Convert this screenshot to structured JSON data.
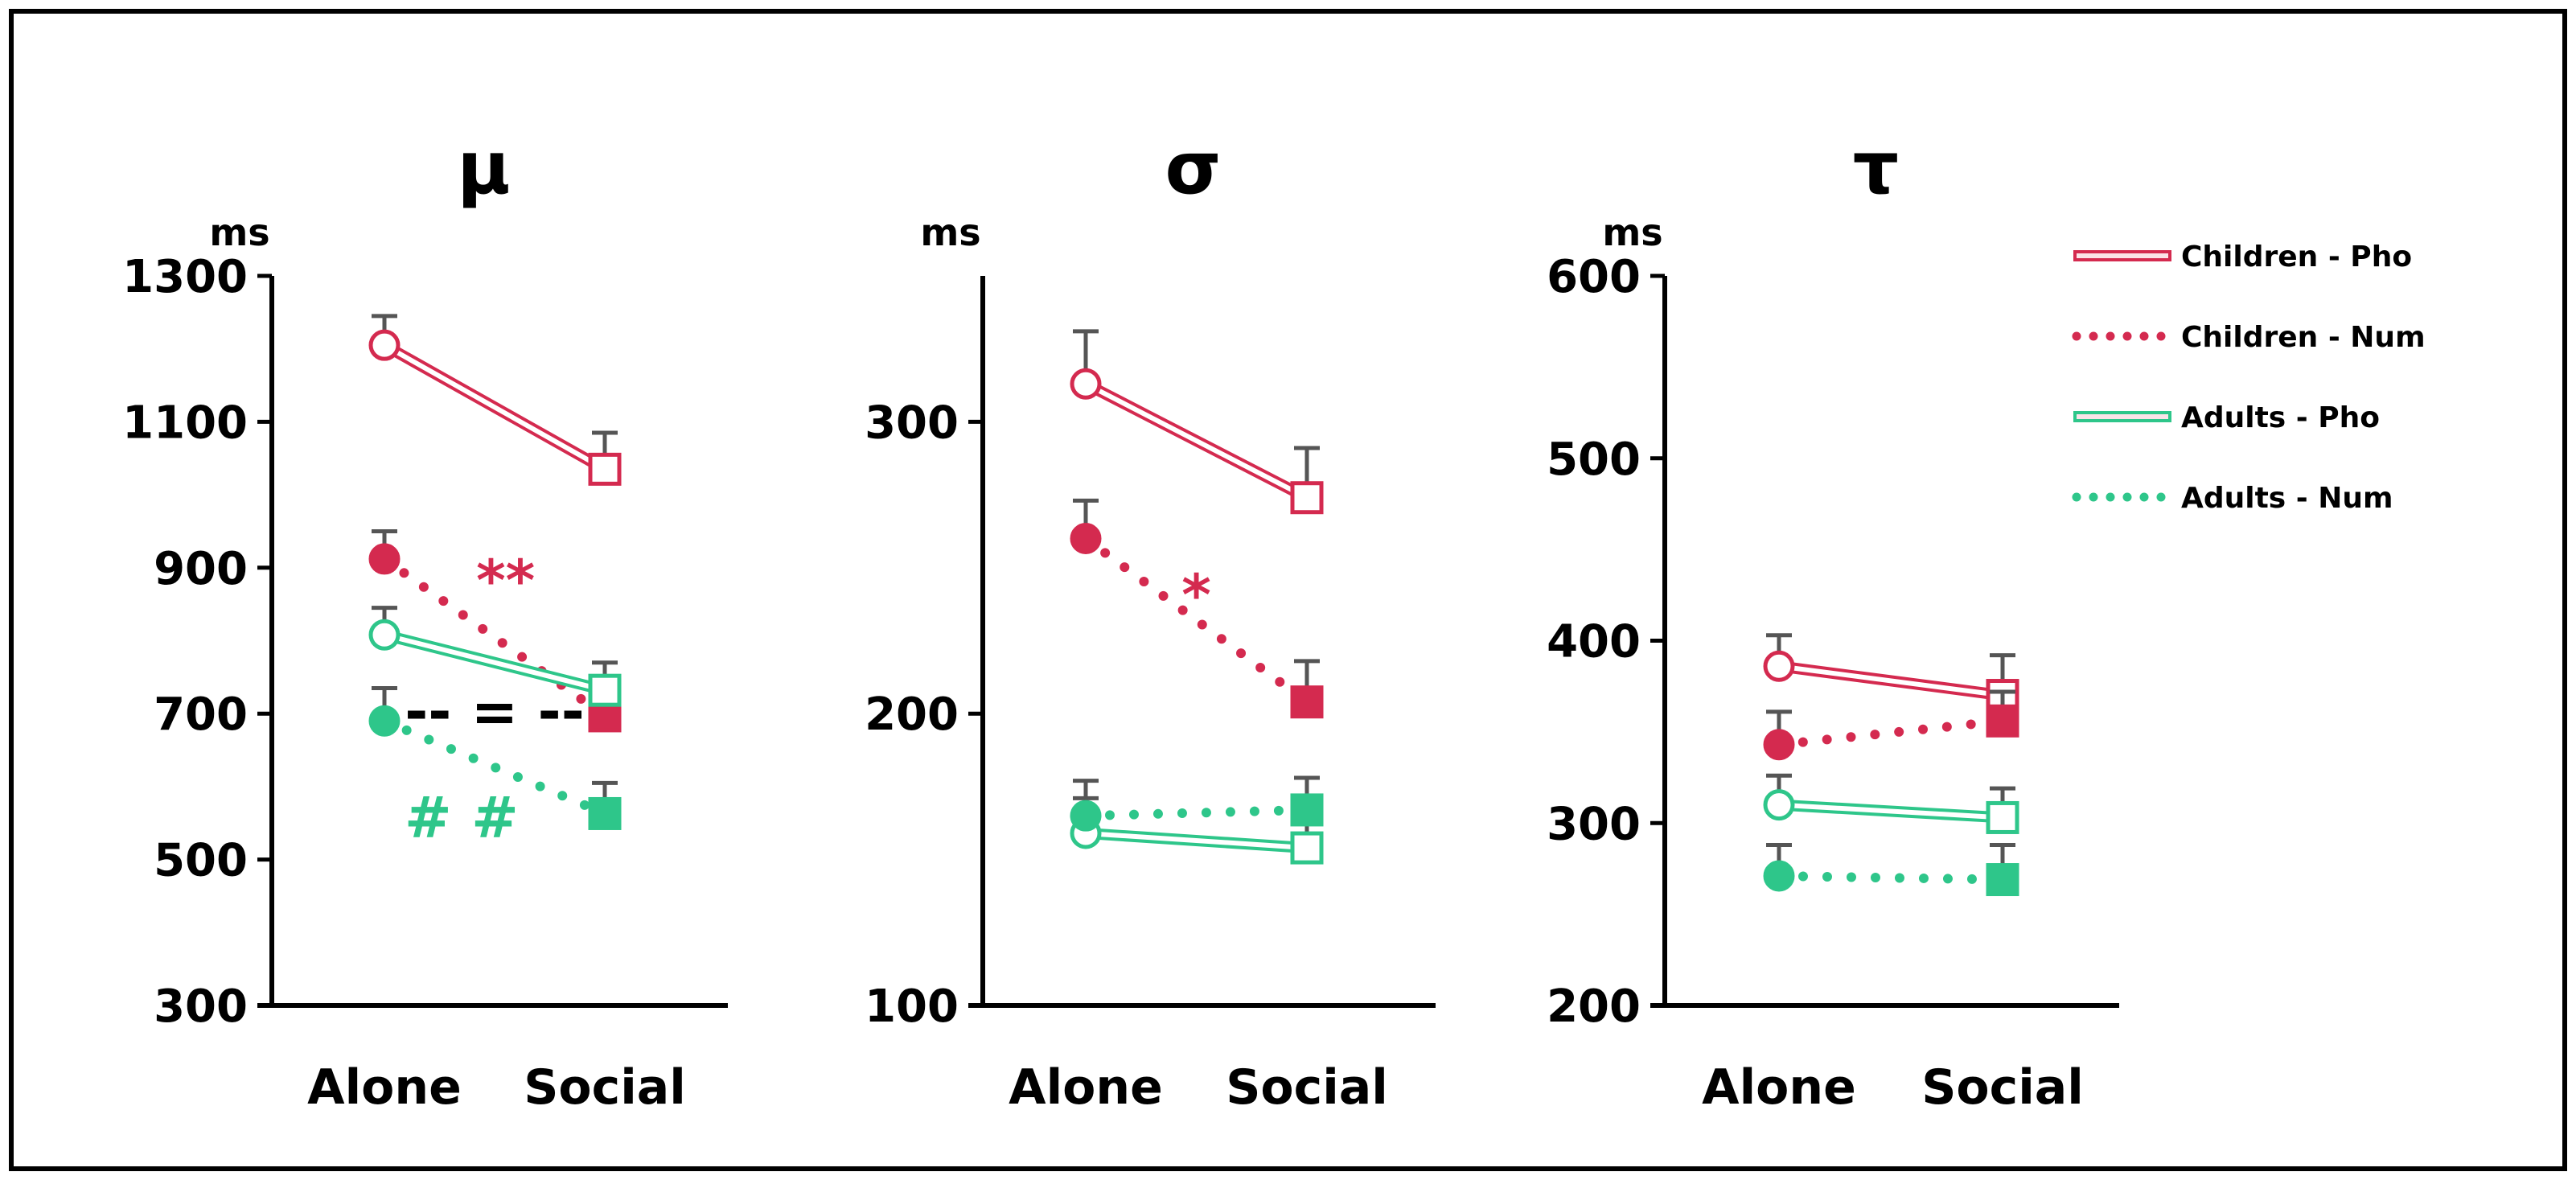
{
  "chart_data": [
    {
      "type": "line",
      "title": "μ",
      "ylabel": "ms",
      "categories": [
        "Alone",
        "Social"
      ],
      "ylim": [
        300,
        1300
      ],
      "yticks": [
        300,
        500,
        700,
        900,
        1100,
        1300
      ],
      "series": [
        {
          "name": "Children - Pho",
          "values": [
            1205,
            1035
          ],
          "err_top": [
            1245,
            1085
          ]
        },
        {
          "name": "Children - Num",
          "values": [
            912,
            697
          ],
          "err_top": [
            950,
            740
          ]
        },
        {
          "name": "Adults - Pho",
          "values": [
            808,
            732
          ],
          "err_top": [
            845,
            770
          ]
        },
        {
          "name": "Adults - Num",
          "values": [
            690,
            563
          ],
          "err_top": [
            735,
            605
          ]
        }
      ],
      "annotations": [
        {
          "text": "**",
          "color": "#D42A4F",
          "x": 0.55,
          "y": 880
        },
        {
          "text": "-- = --",
          "color": "#000000",
          "x": 0.5,
          "y": 700
        },
        {
          "text": "# #",
          "color": "#2EC68A",
          "x": 0.35,
          "y": 555
        }
      ]
    },
    {
      "type": "line",
      "title": "σ",
      "ylabel": "ms",
      "categories": [
        "Alone",
        "Social"
      ],
      "ylim": [
        100,
        350
      ],
      "yticks": [
        100,
        200,
        300
      ],
      "series": [
        {
          "name": "Children - Pho",
          "values": [
            313,
            274
          ],
          "err_top": [
            331,
            291
          ]
        },
        {
          "name": "Children - Num",
          "values": [
            260,
            204
          ],
          "err_top": [
            273,
            218
          ]
        },
        {
          "name": "Adults - Pho",
          "values": [
            159,
            154
          ],
          "err_top": [
            171,
            167
          ]
        },
        {
          "name": "Adults - Num",
          "values": [
            165,
            167
          ],
          "err_top": [
            177,
            178
          ]
        }
      ],
      "annotations": [
        {
          "text": "*",
          "color": "#D42A4F",
          "x": 0.5,
          "y": 240
        }
      ]
    },
    {
      "type": "line",
      "title": "τ",
      "ylabel": "ms",
      "categories": [
        "Alone",
        "Social"
      ],
      "ylim": [
        200,
        600
      ],
      "yticks": [
        200,
        300,
        400,
        500,
        600
      ],
      "series": [
        {
          "name": "Children - Pho",
          "values": [
            386,
            370
          ],
          "err_top": [
            403,
            392
          ]
        },
        {
          "name": "Children - Num",
          "values": [
            343,
            356
          ],
          "err_top": [
            361,
            372
          ]
        },
        {
          "name": "Adults - Pho",
          "values": [
            310,
            303
          ],
          "err_top": [
            326,
            319
          ]
        },
        {
          "name": "Adults - Num",
          "values": [
            271,
            269
          ],
          "err_top": [
            288,
            288
          ]
        }
      ],
      "annotations": []
    }
  ],
  "legend": {
    "placement": "right",
    "entries": [
      {
        "label": "Children - Pho",
        "color": "#D42A4F",
        "style": "double"
      },
      {
        "label": "Children - Num",
        "color": "#D42A4F",
        "style": "dotted"
      },
      {
        "label": "Adults - Pho",
        "color": "#2EC68A",
        "style": "double"
      },
      {
        "label": "Adults - Num",
        "color": "#2EC68A",
        "style": "dotted"
      }
    ]
  }
}
